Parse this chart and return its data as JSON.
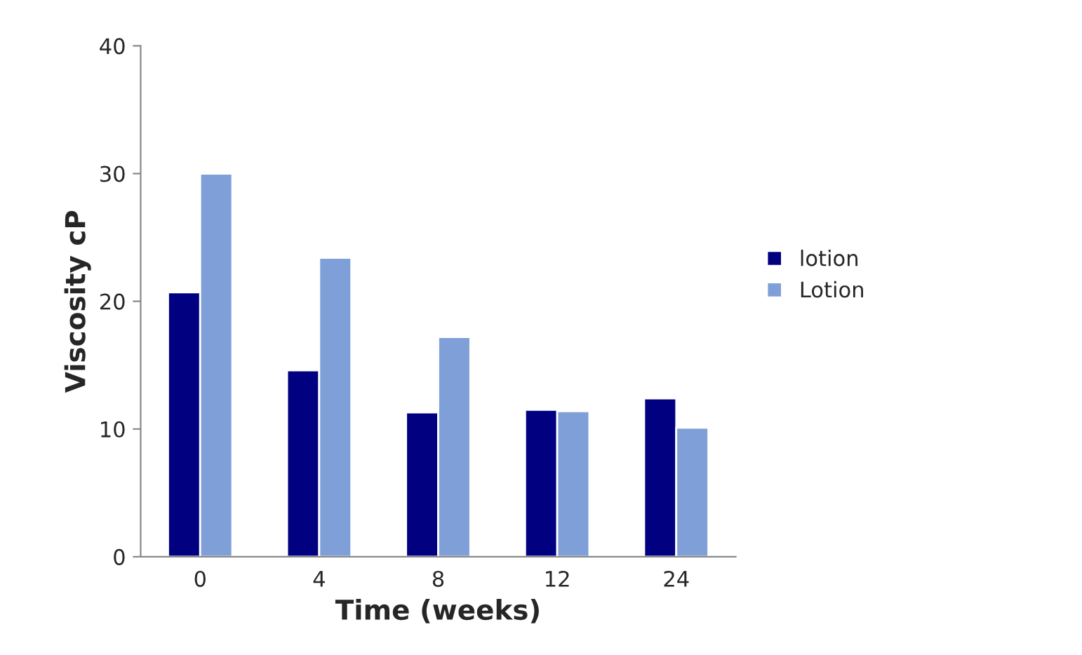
{
  "chart_data": {
    "type": "bar",
    "xlabel": "Time (weeks)",
    "ylabel": "Viscosity cP",
    "categories": [
      "0",
      "4",
      "8",
      "12",
      "24"
    ],
    "series": [
      {
        "name": "lotion",
        "color": "#000080",
        "values": [
          20.7,
          14.6,
          11.3,
          11.5,
          12.4
        ]
      },
      {
        "name": "Lotion",
        "color": "#7f9fd8",
        "values": [
          30.0,
          23.4,
          17.2,
          11.4,
          10.1
        ]
      }
    ],
    "ylim": [
      0,
      40
    ],
    "yticks": [
      0,
      10,
      20,
      30,
      40
    ],
    "grid": false,
    "legend": "right"
  }
}
